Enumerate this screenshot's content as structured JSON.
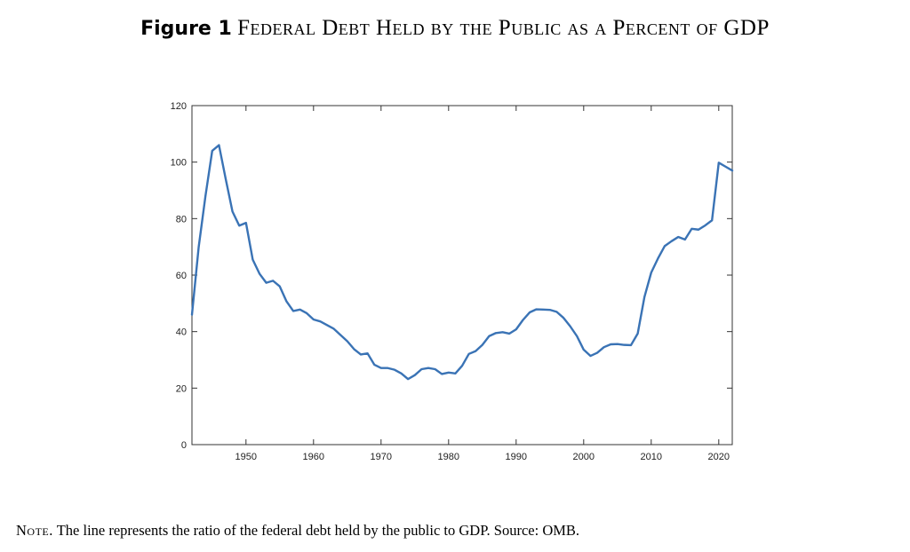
{
  "figure": {
    "label": "Figure 1",
    "title": "Federal Debt Held by the Public as a Percent of GDP"
  },
  "note": {
    "label": "Note.",
    "text": "The line represents the ratio of the federal debt held by the public to GDP. Source: OMB."
  },
  "colors": {
    "line": "#3a73b5",
    "axis": "#333333"
  },
  "chart_data": {
    "type": "line",
    "title": "",
    "xlabel": "",
    "ylabel": "",
    "xlim": [
      1942,
      2022
    ],
    "ylim": [
      0,
      120
    ],
    "xticks": [
      1950,
      1960,
      1970,
      1980,
      1990,
      2000,
      2010,
      2020
    ],
    "yticks": [
      0,
      20,
      40,
      60,
      80,
      100,
      120
    ],
    "grid": false,
    "legend": "none",
    "x": [
      1942,
      1943,
      1944,
      1945,
      1946,
      1947,
      1948,
      1949,
      1950,
      1951,
      1952,
      1953,
      1954,
      1955,
      1956,
      1957,
      1958,
      1959,
      1960,
      1961,
      1962,
      1963,
      1964,
      1965,
      1966,
      1967,
      1968,
      1969,
      1970,
      1971,
      1972,
      1973,
      1974,
      1975,
      1976,
      1977,
      1978,
      1979,
      1980,
      1981,
      1982,
      1983,
      1984,
      1985,
      1986,
      1987,
      1988,
      1989,
      1990,
      1991,
      1992,
      1993,
      1994,
      1995,
      1996,
      1997,
      1998,
      1999,
      2000,
      2001,
      2002,
      2003,
      2004,
      2005,
      2006,
      2007,
      2008,
      2009,
      2010,
      2011,
      2012,
      2013,
      2014,
      2015,
      2016,
      2017,
      2018,
      2019,
      2020,
      2021,
      2022
    ],
    "series": [
      {
        "values": [
          46,
          70,
          88,
          104,
          106,
          94,
          82.5,
          77.5,
          78.5,
          65.5,
          60.5,
          57.3,
          58,
          56,
          50.7,
          47.3,
          47.8,
          46.5,
          44.3,
          43.6,
          42.3,
          41,
          38.8,
          36.6,
          33.8,
          31.9,
          32.3,
          28.3,
          27.1,
          27.1,
          26.5,
          25.2,
          23.2,
          24.6,
          26.7,
          27.1,
          26.7,
          25,
          25.5,
          25.2,
          27.9,
          32.1,
          33.1,
          35.3,
          38.4,
          39.5,
          39.8,
          39.3,
          40.8,
          44.1,
          46.8,
          47.9,
          47.8,
          47.7,
          47,
          44.9,
          41.9,
          38.4,
          33.6,
          31.4,
          32.5,
          34.5,
          35.5,
          35.6,
          35.3,
          35.2,
          39.3,
          52.3,
          60.9,
          65.9,
          70.3,
          72,
          73.5,
          72.6,
          76.4,
          76.1,
          77.6,
          79.4,
          99.8,
          98.4,
          97
        ]
      }
    ]
  }
}
